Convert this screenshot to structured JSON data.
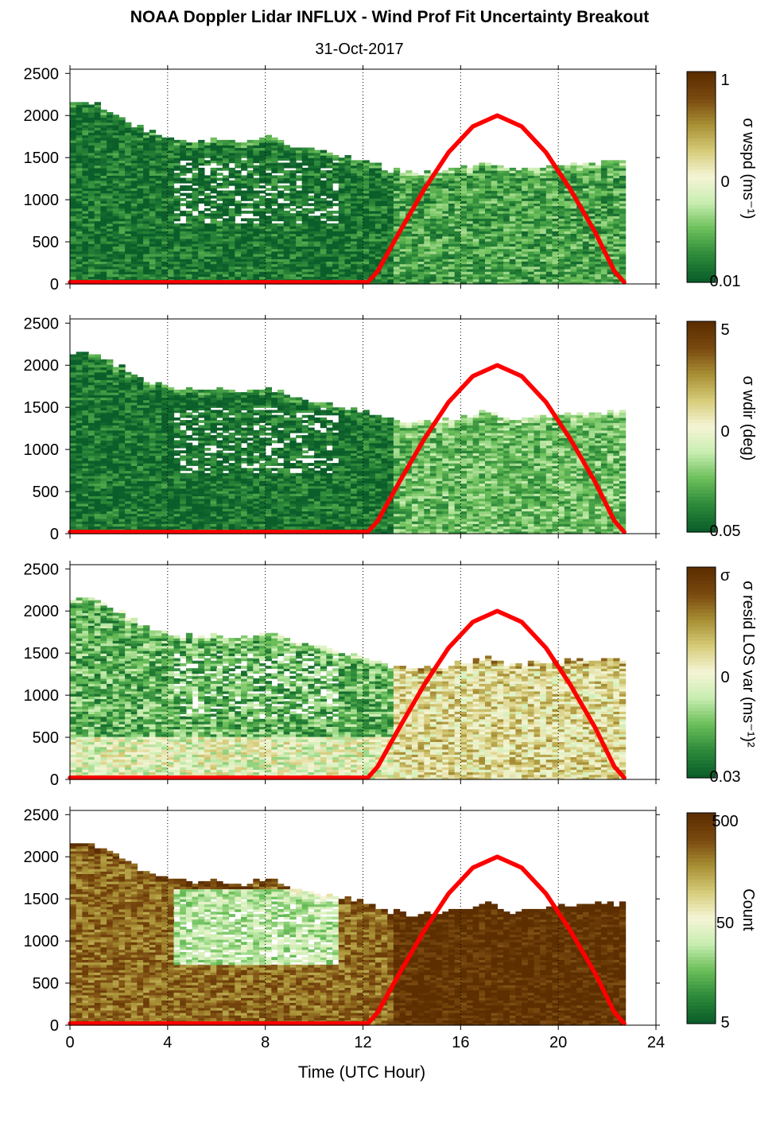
{
  "title": "NOAA Doppler Lidar INFLUX - Wind Prof Fit Uncertainty Breakout",
  "subtitle": "31-Oct-2017",
  "chart_data": {
    "type": "heatmap",
    "xlabel": "Time (UTC Hour)",
    "xlim": [
      0,
      24
    ],
    "x_ticks": [
      "0",
      "4",
      "8",
      "12",
      "16",
      "20",
      "24"
    ],
    "ylim": [
      0,
      2550
    ],
    "y_ticks": [
      "0",
      "500",
      "1000",
      "1500",
      "2000",
      "2500"
    ],
    "gridlines": "dotted vertical at every 4 h",
    "grid_hours": [
      4,
      8,
      12,
      16,
      20,
      24
    ],
    "colormap": [
      "#0b5e2a",
      "#2e8b3a",
      "#6cbf5a",
      "#c8edb0",
      "#f5f5d6",
      "#d6cc7a",
      "#a89035",
      "#7a4a10",
      "#5c2e00"
    ],
    "data_extent_hours": [
      0,
      22.7
    ],
    "max_height_profile": {
      "hours": [
        0,
        1,
        2,
        3,
        4,
        5,
        6,
        7,
        8,
        9,
        10,
        11,
        12,
        13,
        14,
        15,
        16,
        17,
        18,
        19,
        20,
        21,
        22,
        22.7
      ],
      "height_m": [
        2140,
        2120,
        1960,
        1800,
        1720,
        1680,
        1700,
        1660,
        1740,
        1600,
        1560,
        1500,
        1440,
        1340,
        1300,
        1320,
        1380,
        1440,
        1340,
        1380,
        1400,
        1420,
        1440,
        1420
      ]
    },
    "solar_elevation_line": {
      "color": "#ff0000",
      "hours": [
        0,
        12.2,
        12.6,
        13.5,
        14.5,
        15.5,
        16.5,
        17.5,
        18.5,
        19.5,
        20.5,
        21.5,
        22.3,
        22.7
      ],
      "height_m": [
        20,
        20,
        150,
        620,
        1120,
        1560,
        1870,
        2000,
        1870,
        1560,
        1120,
        620,
        150,
        20
      ]
    },
    "panels": [
      {
        "colorbar_label": "σ wspd (ms⁻¹)",
        "colorbar_ticks": [
          "1",
          "0",
          "0.01"
        ],
        "morning_level": 0.05,
        "afternoon_level": 0.18,
        "noise": 0.15
      },
      {
        "colorbar_label": "σ wdir (deg)",
        "colorbar_ticks": [
          "5",
          "0",
          "0.05"
        ],
        "morning_level": 0.05,
        "afternoon_level": 0.24,
        "noise": 0.14
      },
      {
        "colorbar_label": "σ resid LOS var (ms⁻¹)²",
        "colorbar_ticks": [
          "σ",
          "0",
          "0.03"
        ],
        "morning_level": 0.22,
        "afternoon_level": 0.58,
        "noise": 0.18
      },
      {
        "colorbar_label": "Count",
        "colorbar_ticks": [
          "500",
          "50",
          "5"
        ],
        "morning_level": 0.82,
        "afternoon_level": 0.98,
        "noise": 0.12
      }
    ]
  }
}
